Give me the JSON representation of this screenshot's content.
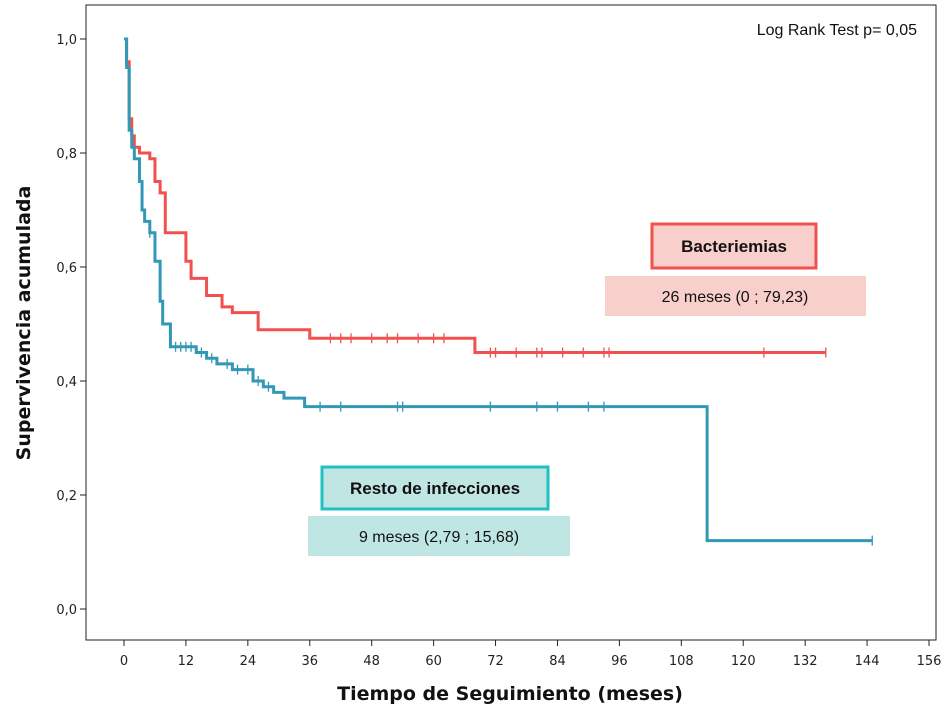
{
  "chart_data": {
    "type": "line",
    "subtype": "kaplan-meier",
    "xlabel": "Tiempo de Seguimiento (meses)",
    "ylabel": "Supervivencia acumulada",
    "xlim": [
      0,
      156
    ],
    "ylim": [
      0,
      1
    ],
    "x_ticks": [
      "0",
      "12",
      "24",
      "36",
      "48",
      "60",
      "72",
      "84",
      "96",
      "108",
      "120",
      "132",
      "144",
      "156"
    ],
    "y_ticks": [
      "0,0",
      "0,2",
      "0,4",
      "0,6",
      "0,8",
      "1,0"
    ],
    "stat_text": "Log Rank Test p= 0,05",
    "grid": false,
    "series": [
      {
        "name": "Bacteriemias",
        "median_label": "26 meses (0 ; 79,23)",
        "color": "#f0514f",
        "label_bg": "#f8cfca",
        "steps": [
          [
            0,
            1.0
          ],
          [
            0.5,
            0.96
          ],
          [
            1,
            0.86
          ],
          [
            1.5,
            0.83
          ],
          [
            2,
            0.81
          ],
          [
            3,
            0.8
          ],
          [
            5,
            0.79
          ],
          [
            6,
            0.75
          ],
          [
            7,
            0.73
          ],
          [
            8,
            0.66
          ],
          [
            12,
            0.61
          ],
          [
            13,
            0.58
          ],
          [
            16,
            0.55
          ],
          [
            19,
            0.53
          ],
          [
            21,
            0.52
          ],
          [
            26,
            0.49
          ],
          [
            36,
            0.475
          ],
          [
            68,
            0.45
          ],
          [
            136,
            0.45
          ]
        ],
        "censored": [
          40,
          42,
          44,
          48,
          51,
          53,
          57,
          60,
          62,
          71,
          72,
          76,
          80,
          81,
          85,
          89,
          93,
          94,
          124,
          136
        ]
      },
      {
        "name": "Resto de infecciones",
        "median_label": "9 meses (2,79 ; 15,68)",
        "color": "#3398b5",
        "label_bg": "#bfe6e2",
        "steps": [
          [
            0,
            1.0
          ],
          [
            0.5,
            0.95
          ],
          [
            1,
            0.84
          ],
          [
            1.5,
            0.81
          ],
          [
            2,
            0.79
          ],
          [
            3,
            0.75
          ],
          [
            3.5,
            0.7
          ],
          [
            4,
            0.68
          ],
          [
            5,
            0.66
          ],
          [
            6,
            0.61
          ],
          [
            7,
            0.54
          ],
          [
            7.5,
            0.5
          ],
          [
            9,
            0.46
          ],
          [
            14,
            0.45
          ],
          [
            16,
            0.44
          ],
          [
            18,
            0.43
          ],
          [
            21,
            0.42
          ],
          [
            25,
            0.4
          ],
          [
            27,
            0.39
          ],
          [
            29,
            0.38
          ],
          [
            31,
            0.37
          ],
          [
            35,
            0.355
          ],
          [
            113,
            0.12
          ],
          [
            145,
            0.12
          ]
        ],
        "censored": [
          5,
          10,
          11,
          12,
          13,
          15,
          17,
          20,
          22,
          24,
          26,
          28,
          38,
          42,
          53,
          54,
          71,
          80,
          84,
          90,
          93,
          145
        ]
      }
    ]
  }
}
